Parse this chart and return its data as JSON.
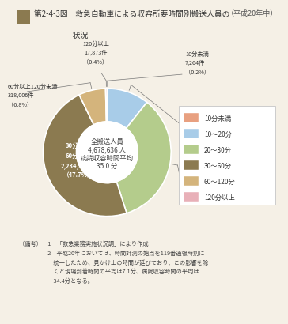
{
  "title_line1": "第2-4-3図　救急自動車による収容所要時間別搬送人員の",
  "title_line2": "　　　　　状況",
  "subtitle": "（平成20年中）",
  "center_line1": "全搬送人員",
  "center_line2": "4,678,636 人",
  "center_line3": "病院収容時間平均",
  "center_line4": "35.0 分",
  "note_line1": "（備考）　1　「救急業務実施状況調」により作成",
  "note_line2": "　　　　　2　平成20年においては、時間計測の始点を119番通報時刻に",
  "note_line3": "　　　　　　統一したため、見かけ上の時間が延びており、この影響を除",
  "note_line4": "　　　　　　くと現場到着時間の平均は7.1分、病院収容時間の平均は",
  "note_line5": "　　　　　　34.4分となる。",
  "values": [
    7264,
    492729,
    1607862,
    2234902,
    318006,
    17873
  ],
  "colors": [
    "#e8a080",
    "#a8cce8",
    "#b4cc8c",
    "#8b7a50",
    "#d4b47c",
    "#e8b0b8"
  ],
  "legend_labels": [
    "10分未満",
    "10～20分",
    "20～30分",
    "30～60分",
    "60～120分",
    "120分以上"
  ],
  "bg_color": "#f5f0e6",
  "title_square_color": "#8b7a50"
}
